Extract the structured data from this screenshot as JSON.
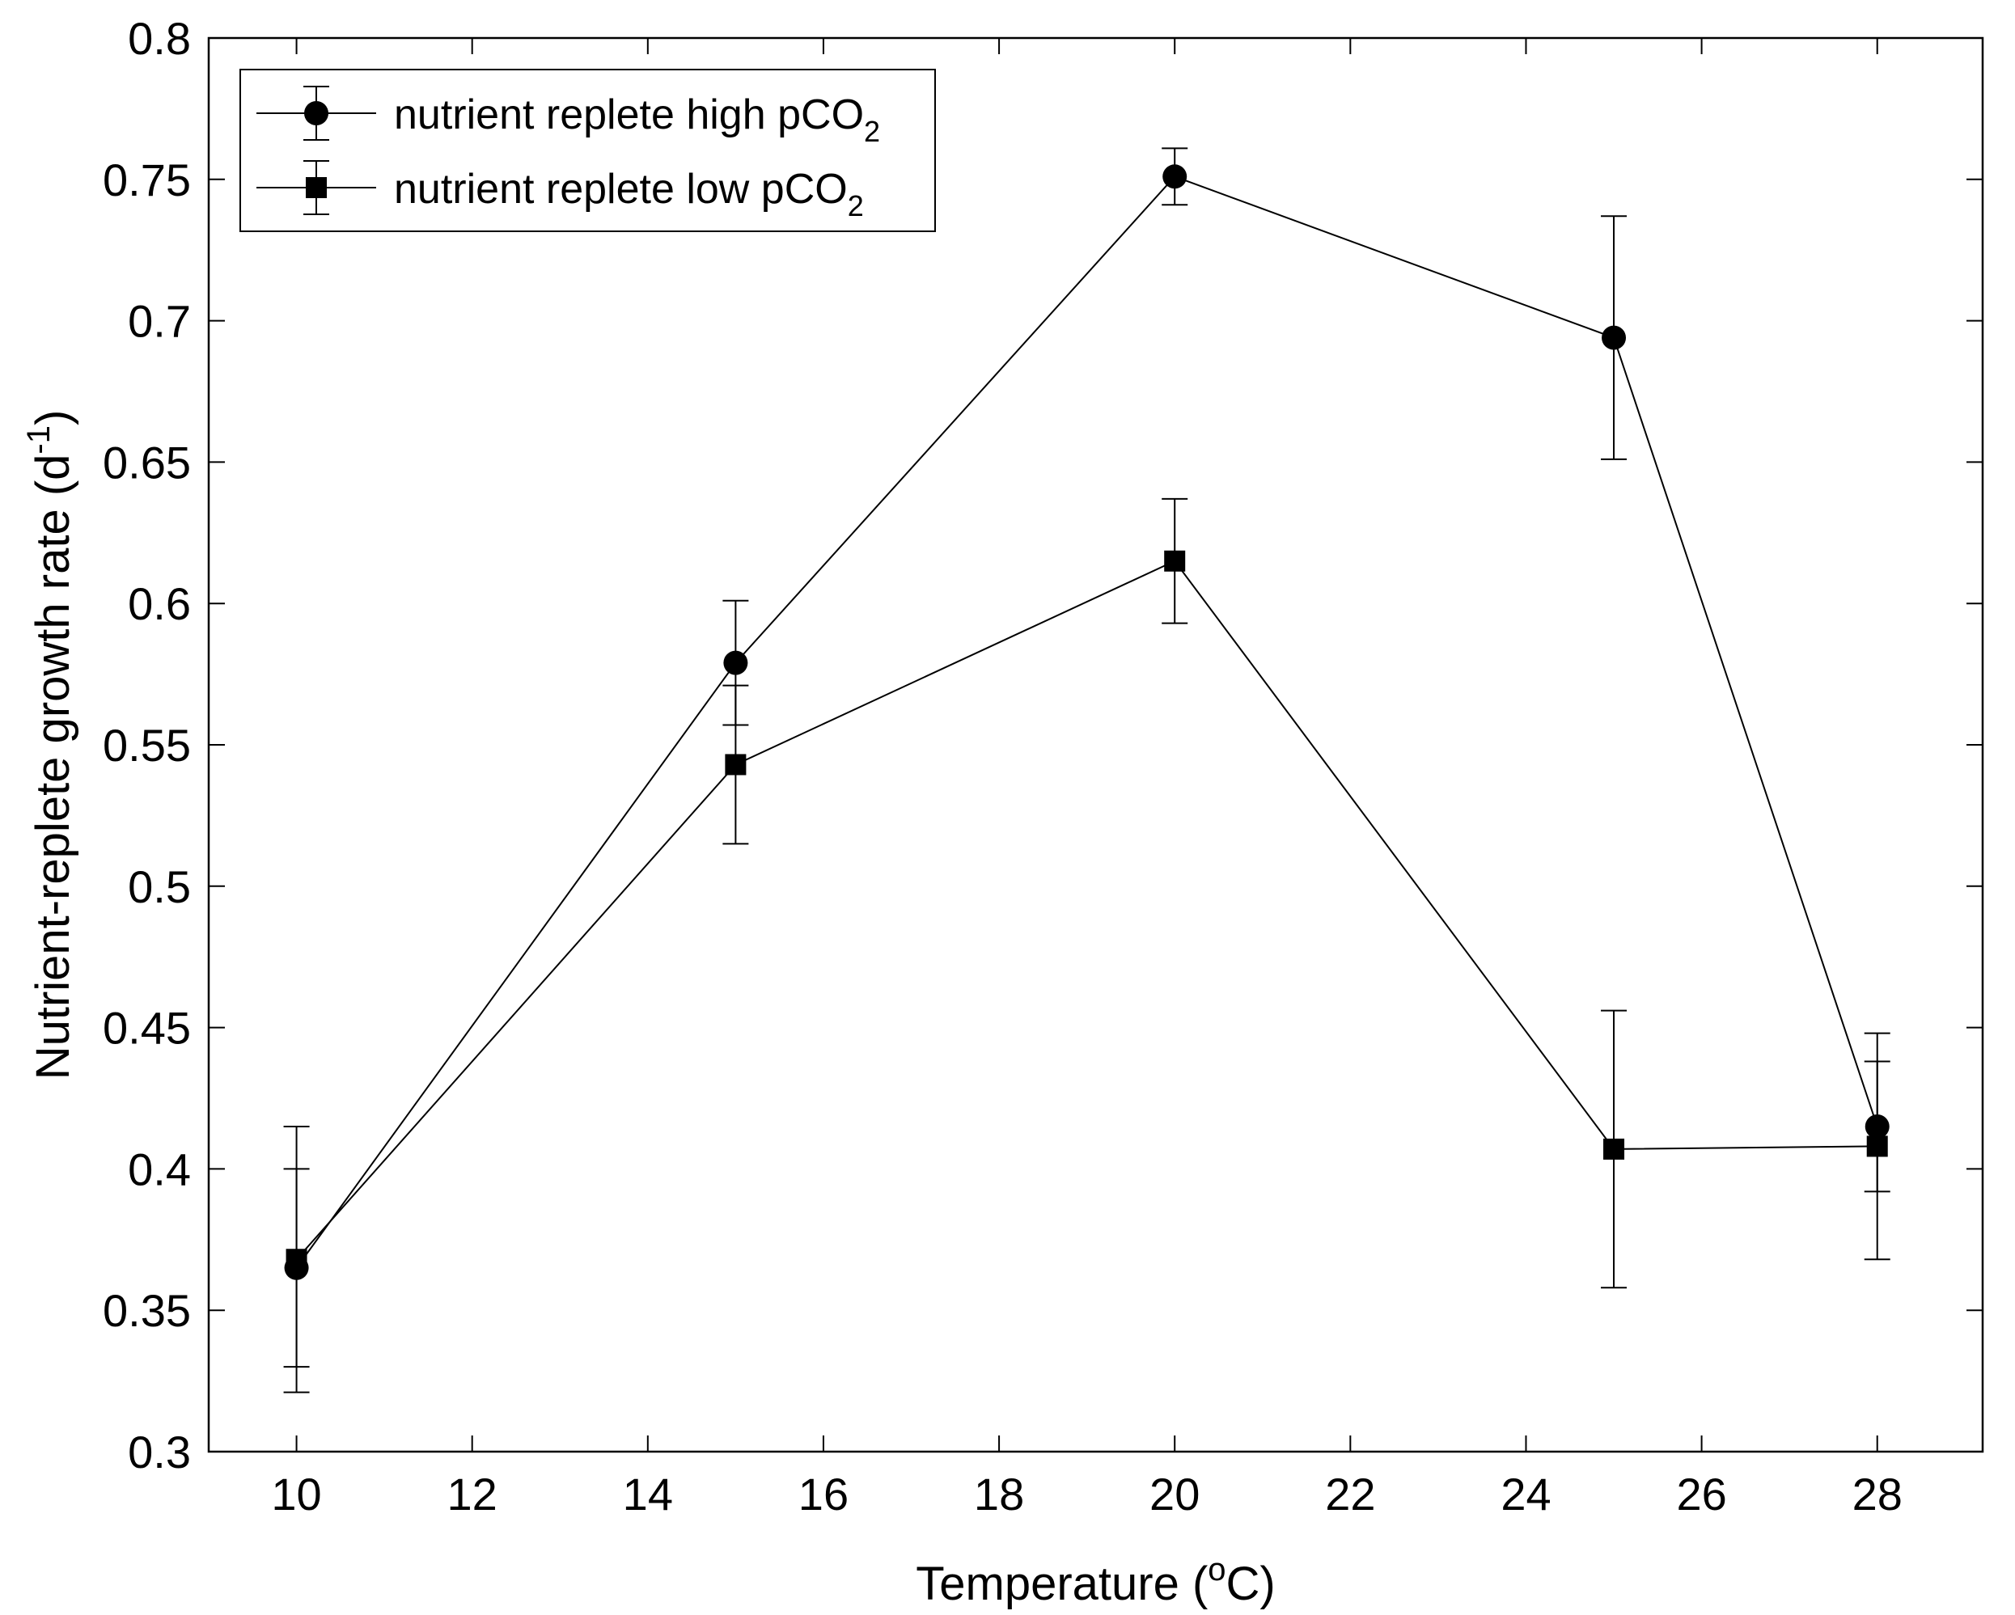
{
  "chart_data": {
    "type": "line",
    "title": "",
    "xlabel": {
      "main": "Temperature (",
      "sup": "o",
      "tail": "C)"
    },
    "ylabel": {
      "main": "Nutrient-replete growth rate (d",
      "sup": "-1",
      "tail": ")"
    },
    "xlim": [
      9,
      29.2
    ],
    "ylim": [
      0.3,
      0.8
    ],
    "xticks": [
      10,
      12,
      14,
      16,
      18,
      20,
      22,
      24,
      26,
      28
    ],
    "xtick_labels": [
      "10",
      "12",
      "14",
      "16",
      "18",
      "20",
      "22",
      "24",
      "26",
      "28"
    ],
    "yticks": [
      0.3,
      0.35,
      0.4,
      0.45,
      0.5,
      0.55,
      0.6,
      0.65,
      0.7,
      0.75,
      0.8
    ],
    "ytick_labels": [
      "0.3",
      "0.35",
      "0.4",
      "0.45",
      "0.5",
      "0.55",
      "0.6",
      "0.65",
      "0.7",
      "0.75",
      "0.8"
    ],
    "grid": false,
    "legend_position": "top-left",
    "series": [
      {
        "name": "nutrient replete high pCO2",
        "legend_text": "nutrient replete high pCO",
        "legend_sub": "2",
        "marker": "circle",
        "color": "#000000",
        "x": [
          10,
          15,
          20,
          25,
          28
        ],
        "y": [
          0.365,
          0.579,
          0.751,
          0.694,
          0.415
        ],
        "err": [
          0.035,
          0.022,
          0.01,
          0.043,
          0.023
        ]
      },
      {
        "name": "nutrient replete low pCO2",
        "legend_text": "nutrient replete low pCO",
        "legend_sub": "2",
        "marker": "square",
        "color": "#000000",
        "x": [
          10,
          15,
          20,
          25,
          28
        ],
        "y": [
          0.368,
          0.543,
          0.615,
          0.407,
          0.408
        ],
        "err": [
          0.047,
          0.028,
          0.022,
          0.049,
          0.04
        ]
      }
    ]
  }
}
